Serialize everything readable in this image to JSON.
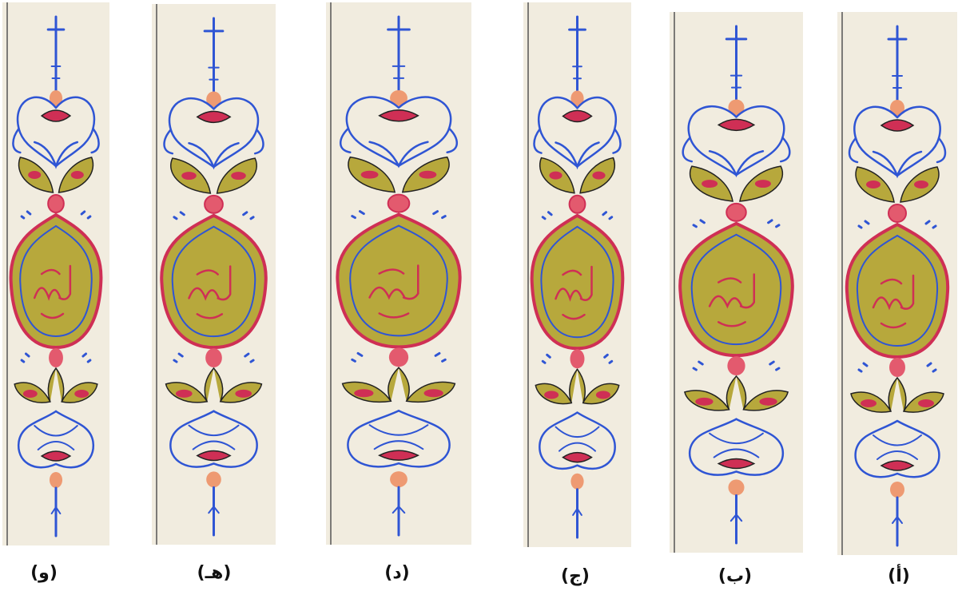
{
  "panels": [
    {
      "label": "(و)"
    },
    {
      "label": "(هـ)"
    },
    {
      "label": "(د)"
    },
    {
      "label": "(ج)"
    },
    {
      "label": "(ب)"
    },
    {
      "label": "(أ)"
    }
  ]
}
